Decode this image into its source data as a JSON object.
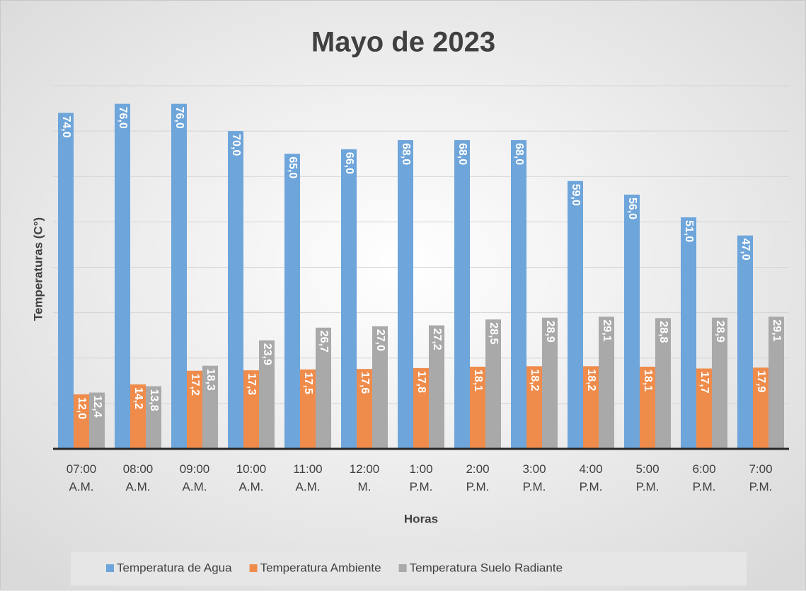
{
  "chart_data": {
    "type": "bar",
    "title": "Mayo de 2023",
    "x_label": "Horas",
    "y_label": "Temperaturas (C°)",
    "categories": [
      "07:00 A.M.",
      "08:00 A.M.",
      "09:00 A.M.",
      "10:00 A.M.",
      "11:00 A.M.",
      "12:00 M.",
      "1:00 P.M.",
      "2:00 P.M.",
      "3:00 P.M.",
      "4:00 P.M.",
      "5:00 P.M.",
      "6:00 P.M.",
      "7:00 P.M."
    ],
    "series": [
      {
        "name": "Temperatura de Agua",
        "color": "#6ea5da",
        "values": [
          74,
          76,
          76,
          70,
          65,
          66,
          68,
          68,
          68,
          59,
          56,
          51,
          47
        ],
        "value_labels": [
          "74,0",
          "76,0",
          "76,0",
          "70,0",
          "65,0",
          "66,0",
          "68,0",
          "68,0",
          "68,0",
          "59,0",
          "56,0",
          "51,0",
          "47,0"
        ]
      },
      {
        "name": "Temperatura Ambiente",
        "color": "#ef8c4c",
        "values": [
          12.0,
          14.2,
          17.2,
          17.3,
          17.5,
          17.6,
          17.8,
          18.1,
          18.2,
          18.2,
          18.1,
          17.7,
          17.9
        ],
        "value_labels": [
          "12,0",
          "14,2",
          "17,2",
          "17,3",
          "17,5",
          "17,6",
          "17,8",
          "18,1",
          "18,2",
          "18,2",
          "18,1",
          "17,7",
          "17,9"
        ]
      },
      {
        "name": "Temperatura Suelo Radiante",
        "color": "#a9a9a9",
        "values": [
          12.4,
          13.8,
          18.3,
          23.9,
          26.7,
          27.0,
          27.2,
          28.5,
          28.9,
          29.1,
          28.8,
          28.9,
          29.1
        ],
        "value_labels": [
          "12,4",
          "13,8",
          "18,3",
          "23,9",
          "26,7",
          "27,0",
          "27,2",
          "28,5",
          "28,9",
          "29,1",
          "28,8",
          "28,9",
          "29,1"
        ]
      }
    ],
    "ylim": [
      0,
      80
    ],
    "yticks": [
      0,
      10,
      20,
      30,
      40,
      50,
      60,
      70,
      80
    ],
    "grid": true,
    "legend": "bottom"
  }
}
